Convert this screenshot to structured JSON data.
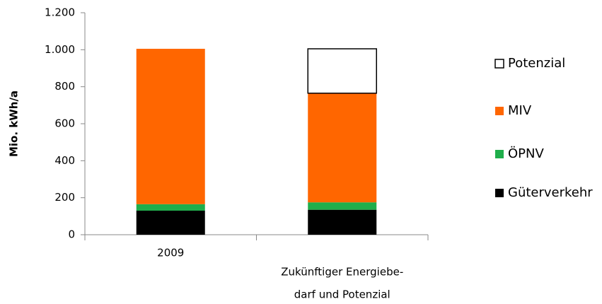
{
  "chart_data": {
    "type": "stacked_bar",
    "y_label": "Mio. kWh/a",
    "categories": [
      "2009",
      [
        "Zukünftiger Energiebe-",
        "darf und Potenzial"
      ]
    ],
    "series": [
      {
        "name": "Güterverkehr",
        "color": "#000000",
        "values": [
          130,
          135
        ]
      },
      {
        "name": "ÖPNV",
        "color": "#1fae4b",
        "values": [
          35,
          40
        ]
      },
      {
        "name": "MIV",
        "color": "#ff6600",
        "values": [
          840,
          590
        ]
      },
      {
        "name": "Potenzial",
        "color": "#ffffff",
        "values": [
          0,
          240
        ]
      }
    ],
    "ylim": [
      0,
      1200
    ],
    "yticks": [
      0,
      200,
      400,
      600,
      800,
      {
        "value": 1000,
        "label": "1.000"
      },
      {
        "value": 1200,
        "label": "1.200"
      }
    ],
    "grid": false,
    "legend": "right"
  }
}
